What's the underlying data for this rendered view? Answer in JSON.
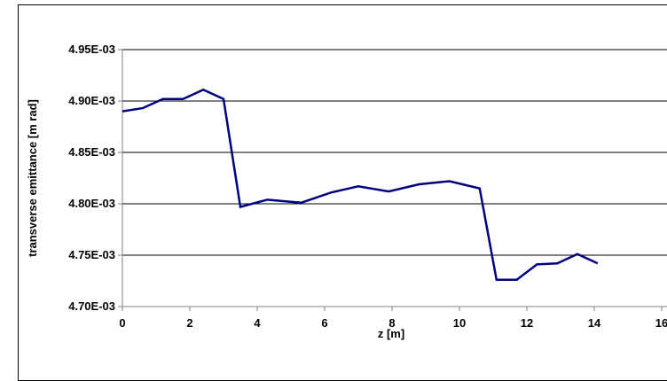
{
  "chart_data": {
    "type": "line",
    "title": "",
    "xlabel": "z [m]",
    "ylabel": "transverse emittance [m rad]",
    "xlim": [
      0,
      16
    ],
    "ylim": [
      0.0047,
      0.00495
    ],
    "x_ticks": [
      0,
      2,
      4,
      6,
      8,
      10,
      12,
      14,
      16
    ],
    "x_tick_labels": [
      "0",
      "2",
      "4",
      "6",
      "8",
      "10",
      "12",
      "14",
      "16"
    ],
    "y_ticks": [
      0.0047,
      0.00475,
      0.0048,
      0.00485,
      0.0049,
      0.00495
    ],
    "y_tick_labels": [
      "4.70E-03",
      "4.75E-03",
      "4.80E-03",
      "4.85E-03",
      "4.90E-03",
      "4.95E-03"
    ],
    "grid": "horizontal",
    "legend": "none",
    "series_color": "#000080",
    "series": [
      {
        "x": [
          0,
          0.6,
          1.2,
          1.8,
          2.4,
          3.0,
          3.5,
          4.3,
          5.3,
          6.2,
          7.0,
          7.9,
          8.8,
          9.7,
          10.6,
          11.1,
          11.7,
          12.3,
          12.9,
          13.5,
          14.1
        ],
        "y": [
          0.00489,
          0.004893,
          0.004902,
          0.004902,
          0.004911,
          0.004902,
          0.004797,
          0.004804,
          0.004801,
          0.004811,
          0.004817,
          0.004812,
          0.004819,
          0.004822,
          0.004815,
          0.004726,
          0.004726,
          0.004741,
          0.004742,
          0.004751,
          0.004742
        ]
      }
    ]
  }
}
